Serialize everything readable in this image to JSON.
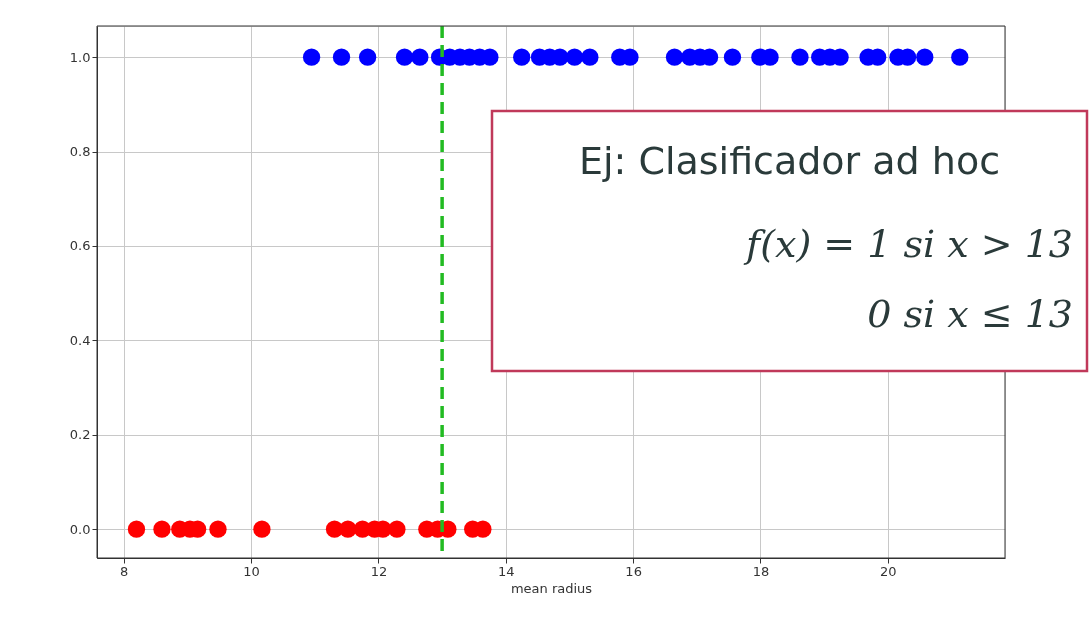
{
  "chart_data": {
    "type": "scatter",
    "xlabel": "mean radius",
    "series": [
      {
        "color": "#0000ff",
        "x": [
          10.95,
          11.42,
          11.83,
          12.41,
          12.65,
          12.96,
          13.12,
          13.28,
          13.43,
          13.59,
          13.75,
          14.25,
          14.53,
          14.69,
          14.85,
          15.08,
          15.32,
          15.79,
          15.95,
          16.65,
          16.89,
          17.05,
          17.2,
          17.56,
          17.99,
          18.15,
          18.62,
          18.93,
          19.09,
          19.25,
          19.69,
          19.84,
          20.16,
          20.31,
          20.58,
          21.13
        ],
        "values": [
          1,
          1,
          1,
          1,
          1,
          1,
          1,
          1,
          1,
          1,
          1,
          1,
          1,
          1,
          1,
          1,
          1,
          1,
          1,
          1,
          1,
          1,
          1,
          1,
          1,
          1,
          1,
          1,
          1,
          1,
          1,
          1,
          1,
          1,
          1,
          1
        ]
      },
      {
        "color": "#ff0000",
        "x": [
          8.2,
          8.6,
          8.88,
          9.04,
          9.16,
          9.48,
          10.17,
          11.31,
          11.52,
          11.75,
          11.94,
          12.07,
          12.29,
          12.76,
          12.93,
          13.09,
          13.48,
          13.64
        ],
        "values": [
          0,
          0,
          0,
          0,
          0,
          0,
          0,
          0,
          0,
          0,
          0,
          0,
          0,
          0,
          0,
          0,
          0,
          0
        ]
      }
    ],
    "xlim": [
      7.58,
      21.84
    ],
    "xticks": [
      8,
      10,
      12,
      14,
      16,
      18,
      20
    ],
    "ylim": [
      -0.061,
      1.066
    ],
    "yticks": [
      {
        "value": 0,
        "label": "0.0"
      },
      {
        "value": 0.2,
        "label": "0.2"
      },
      {
        "value": 0.4,
        "label": "0.4"
      },
      {
        "value": 0.6,
        "label": "0.6"
      },
      {
        "value": 0.8,
        "label": "0.8"
      },
      {
        "value": 1,
        "label": "1.0"
      }
    ],
    "ref_lines": [
      {
        "axis": "x",
        "value": 13,
        "color": "#22bb22",
        "line_style": "dashed"
      }
    ],
    "annotations": [
      "Ej: Clasificador ad hoc",
      "f(x) = 1  si  x > 13",
      "0  si  x ≤ 13"
    ],
    "grid": true,
    "legend": false,
    "marker": "circle"
  }
}
